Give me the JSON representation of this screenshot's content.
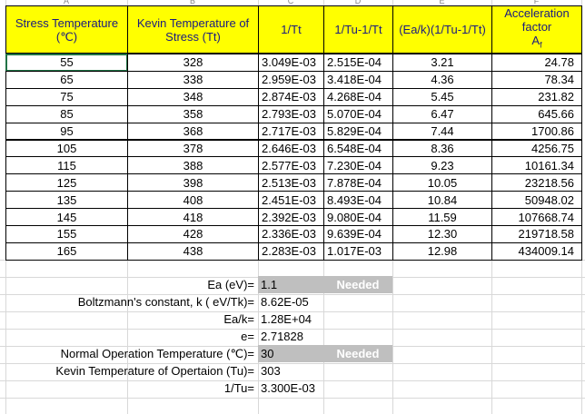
{
  "column_letters": [
    "A",
    "B",
    "C",
    "D",
    "E",
    "F"
  ],
  "table": {
    "header": [
      "Stress Temperature (℃)",
      "Kevin Temperature of Stress (Tt)",
      "1/Tt",
      "1/Tu-1/Tt",
      "(Ea/k)(1/Tu-1/Tt)",
      {
        "text": "Acceleration factor",
        "symbol": "A",
        "subscript": "f"
      }
    ],
    "rows": [
      [
        "55",
        "328",
        "3.049E-03",
        "2.515E-04",
        "3.21",
        "24.78"
      ],
      [
        "65",
        "338",
        "2.959E-03",
        "3.418E-04",
        "4.36",
        "78.34"
      ],
      [
        "75",
        "348",
        "2.874E-03",
        "4.268E-04",
        "5.45",
        "231.82"
      ],
      [
        "85",
        "358",
        "2.793E-03",
        "5.070E-04",
        "6.47",
        "645.66"
      ],
      [
        "95",
        "368",
        "2.717E-03",
        "5.829E-04",
        "7.44",
        "1700.86"
      ],
      [
        "105",
        "378",
        "2.646E-03",
        "6.548E-04",
        "8.36",
        "4256.75"
      ],
      [
        "115",
        "388",
        "2.577E-03",
        "7.230E-04",
        "9.23",
        "10161.34"
      ],
      [
        "125",
        "398",
        "2.513E-03",
        "7.878E-04",
        "10.05",
        "23218.56"
      ],
      [
        "135",
        "408",
        "2.451E-03",
        "8.493E-04",
        "10.84",
        "50948.02"
      ],
      [
        "145",
        "418",
        "2.392E-03",
        "9.080E-04",
        "11.59",
        "107668.74"
      ],
      [
        "155",
        "428",
        "2.336E-03",
        "9.639E-04",
        "12.30",
        "219718.58"
      ],
      [
        "165",
        "438",
        "2.283E-03",
        "1.017E-03",
        "12.98",
        "434009.14"
      ]
    ]
  },
  "parameters": [
    {
      "label": "Ea (eV)=",
      "value": "1.1",
      "note": "Needed"
    },
    {
      "label": "Boltzmann's constant, k ( eV/Tk)=",
      "value": "8.62E-05"
    },
    {
      "label": "Ea/k=",
      "value": "1.28E+04"
    },
    {
      "label": "e=",
      "value": "2.71828"
    },
    {
      "label": "Normal Operation Temperature (℃)=",
      "value": "30",
      "note": "Needed"
    },
    {
      "label": "Kevin Temperature of Opertaion (Tu)=",
      "value": "303"
    },
    {
      "label": "1/Tu=",
      "value": "3.300E-03"
    }
  ]
}
